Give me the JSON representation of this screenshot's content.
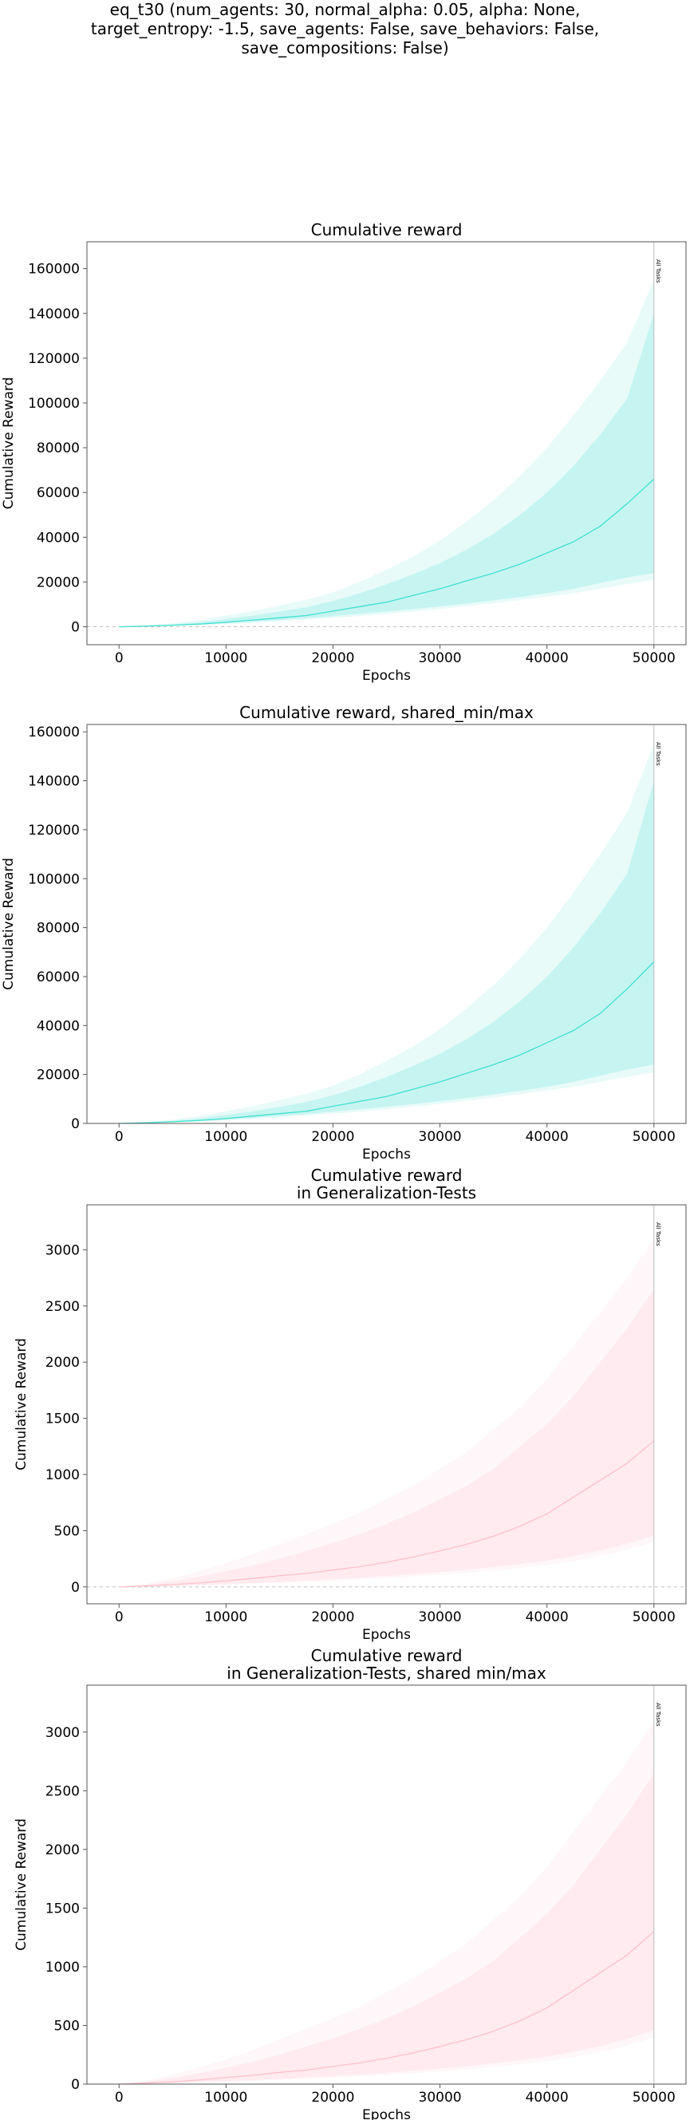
{
  "suptitle_lines": [
    "eq_t30 (num_agents: 30, normal_alpha: 0.05, alpha: None,",
    "target_entropy: -1.5, save_agents: False, save_behaviors: False,",
    "save_compositions: False)"
  ],
  "chart_data": [
    {
      "type": "line",
      "title": [
        "Cumulative reward"
      ],
      "xlabel": "Epochs",
      "ylabel": "Cumulative Reward",
      "xlim": [
        -3000,
        53000
      ],
      "ylim": [
        -8000,
        172000
      ],
      "xticks": [
        0,
        10000,
        20000,
        30000,
        40000,
        50000
      ],
      "yticks": [
        0,
        20000,
        40000,
        60000,
        80000,
        100000,
        120000,
        140000,
        160000
      ],
      "zero_line": true,
      "vline": {
        "x": 50000,
        "label": "All Tasks"
      },
      "color": "#40e0d0",
      "x": [
        0,
        2500,
        5000,
        7500,
        10000,
        12500,
        15000,
        17500,
        20000,
        22500,
        25000,
        27500,
        30000,
        32500,
        35000,
        37500,
        40000,
        42500,
        45000,
        47500,
        50000
      ],
      "series": [
        {
          "role": "mean",
          "values": [
            0,
            300,
            700,
            1200,
            2000,
            3000,
            4000,
            5000,
            7000,
            9000,
            11000,
            14000,
            17000,
            20500,
            24000,
            28000,
            33000,
            38000,
            45000,
            55000,
            66000
          ]
        },
        {
          "role": "outer_lower",
          "values": [
            0,
            200,
            500,
            800,
            1200,
            1800,
            2400,
            3200,
            4000,
            4800,
            5800,
            6800,
            8000,
            9200,
            10500,
            12000,
            13500,
            15000,
            17000,
            19000,
            21000
          ]
        },
        {
          "role": "outer_upper",
          "values": [
            0,
            600,
            1500,
            3000,
            5000,
            7000,
            9500,
            12000,
            15500,
            20000,
            25500,
            31500,
            38500,
            47000,
            56500,
            67500,
            80000,
            94500,
            110000,
            127000,
            155000
          ]
        },
        {
          "role": "inner_lower",
          "values": [
            0,
            250,
            600,
            1000,
            1600,
            2300,
            3000,
            3800,
            4800,
            5800,
            6800,
            7900,
            9100,
            10400,
            11800,
            13300,
            15000,
            17000,
            19500,
            22000,
            24000
          ]
        },
        {
          "role": "inner_upper",
          "values": [
            0,
            450,
            1100,
            2100,
            3500,
            5000,
            6800,
            8800,
            11500,
            15000,
            19000,
            23500,
            28500,
            34500,
            41500,
            50000,
            60000,
            72000,
            86000,
            102000,
            140000
          ]
        }
      ]
    },
    {
      "type": "line",
      "title": [
        "Cumulative reward, shared_min/max"
      ],
      "xlabel": "Epochs",
      "ylabel": "Cumulative Reward",
      "xlim": [
        -3000,
        53000
      ],
      "ylim": [
        0,
        163000
      ],
      "xticks": [
        0,
        10000,
        20000,
        30000,
        40000,
        50000
      ],
      "yticks": [
        0,
        20000,
        40000,
        60000,
        80000,
        100000,
        120000,
        140000,
        160000
      ],
      "zero_line": false,
      "vline": {
        "x": 50000,
        "label": "All Tasks"
      },
      "color": "#40e0d0",
      "x": [
        0,
        2500,
        5000,
        7500,
        10000,
        12500,
        15000,
        17500,
        20000,
        22500,
        25000,
        27500,
        30000,
        32500,
        35000,
        37500,
        40000,
        42500,
        45000,
        47500,
        50000
      ],
      "series": [
        {
          "role": "mean",
          "values": [
            0,
            300,
            700,
            1200,
            2000,
            3000,
            4000,
            5000,
            7000,
            9000,
            11000,
            14000,
            17000,
            20500,
            24000,
            28000,
            33000,
            38000,
            45000,
            55000,
            66000
          ]
        },
        {
          "role": "outer_lower",
          "values": [
            0,
            200,
            500,
            800,
            1200,
            1800,
            2400,
            3200,
            4000,
            4800,
            5800,
            6800,
            8000,
            9200,
            10500,
            12000,
            13500,
            15000,
            17000,
            19000,
            21000
          ]
        },
        {
          "role": "outer_upper",
          "values": [
            0,
            600,
            1500,
            3000,
            5000,
            7000,
            9500,
            12000,
            15500,
            20000,
            25500,
            31500,
            38500,
            47000,
            56500,
            67500,
            80000,
            94500,
            110000,
            127000,
            155000
          ]
        },
        {
          "role": "inner_lower",
          "values": [
            0,
            250,
            600,
            1000,
            1600,
            2300,
            3000,
            3800,
            4800,
            5800,
            6800,
            7900,
            9100,
            10400,
            11800,
            13300,
            15000,
            17000,
            19500,
            22000,
            24000
          ]
        },
        {
          "role": "inner_upper",
          "values": [
            0,
            450,
            1100,
            2100,
            3500,
            5000,
            6800,
            8800,
            11500,
            15000,
            19000,
            23500,
            28500,
            34500,
            41500,
            50000,
            60000,
            72000,
            86000,
            102000,
            140000
          ]
        }
      ]
    },
    {
      "type": "line",
      "title": [
        "Cumulative reward",
        "in Generalization-Tests"
      ],
      "xlabel": "Epochs",
      "ylabel": "Cumulative Reward",
      "xlim": [
        -3000,
        53000
      ],
      "ylim": [
        -150,
        3400
      ],
      "xticks": [
        0,
        10000,
        20000,
        30000,
        40000,
        50000
      ],
      "yticks": [
        0,
        500,
        1000,
        1500,
        2000,
        2500,
        3000
      ],
      "zero_line": true,
      "vline": {
        "x": 50000,
        "label": "All Tasks"
      },
      "color": "#ffc0cb",
      "x": [
        0,
        2500,
        5000,
        7500,
        10000,
        12500,
        15000,
        17500,
        20000,
        22500,
        25000,
        27500,
        30000,
        32500,
        35000,
        37500,
        40000,
        42500,
        45000,
        47500,
        50000
      ],
      "series": [
        {
          "role": "mean",
          "values": [
            0,
            8,
            20,
            35,
            55,
            75,
            100,
            120,
            150,
            180,
            220,
            265,
            320,
            380,
            450,
            540,
            650,
            800,
            950,
            1100,
            1300
          ]
        },
        {
          "role": "outer_lower",
          "values": [
            0,
            3,
            8,
            14,
            20,
            28,
            36,
            45,
            55,
            65,
            78,
            92,
            108,
            125,
            145,
            168,
            195,
            230,
            275,
            330,
            400
          ]
        },
        {
          "role": "outer_upper",
          "values": [
            0,
            30,
            80,
            140,
            210,
            290,
            380,
            470,
            560,
            660,
            780,
            900,
            1050,
            1200,
            1400,
            1600,
            1850,
            2150,
            2450,
            2750,
            3100
          ]
        },
        {
          "role": "inner_lower",
          "values": [
            0,
            4,
            10,
            17,
            25,
            34,
            44,
            55,
            67,
            80,
            96,
            113,
            132,
            153,
            177,
            204,
            235,
            275,
            325,
            385,
            460
          ]
        },
        {
          "role": "inner_upper",
          "values": [
            0,
            20,
            50,
            90,
            140,
            190,
            250,
            320,
            390,
            470,
            560,
            660,
            780,
            900,
            1050,
            1250,
            1450,
            1700,
            2000,
            2300,
            2650
          ]
        }
      ]
    },
    {
      "type": "line",
      "title": [
        "Cumulative reward",
        "in Generalization-Tests, shared min/max"
      ],
      "xlabel": "Epochs",
      "ylabel": "Cumulative Reward",
      "xlim": [
        -3000,
        53000
      ],
      "ylim": [
        0,
        3400
      ],
      "xticks": [
        0,
        10000,
        20000,
        30000,
        40000,
        50000
      ],
      "yticks": [
        0,
        500,
        1000,
        1500,
        2000,
        2500,
        3000
      ],
      "zero_line": false,
      "vline": {
        "x": 50000,
        "label": "All Tasks"
      },
      "color": "#ffc0cb",
      "x": [
        0,
        2500,
        5000,
        7500,
        10000,
        12500,
        15000,
        17500,
        20000,
        22500,
        25000,
        27500,
        30000,
        32500,
        35000,
        37500,
        40000,
        42500,
        45000,
        47500,
        50000
      ],
      "series": [
        {
          "role": "mean",
          "values": [
            0,
            8,
            20,
            35,
            55,
            75,
            100,
            120,
            150,
            180,
            220,
            265,
            320,
            380,
            450,
            540,
            650,
            800,
            950,
            1100,
            1300
          ]
        },
        {
          "role": "outer_lower",
          "values": [
            0,
            3,
            8,
            14,
            20,
            28,
            36,
            45,
            55,
            65,
            78,
            92,
            108,
            125,
            145,
            168,
            195,
            230,
            275,
            330,
            400
          ]
        },
        {
          "role": "outer_upper",
          "values": [
            0,
            30,
            80,
            140,
            210,
            290,
            380,
            470,
            560,
            660,
            780,
            900,
            1050,
            1200,
            1400,
            1600,
            1850,
            2150,
            2450,
            2750,
            3100
          ]
        },
        {
          "role": "inner_lower",
          "values": [
            0,
            4,
            10,
            17,
            25,
            34,
            44,
            55,
            67,
            80,
            96,
            113,
            132,
            153,
            177,
            204,
            235,
            275,
            325,
            385,
            460
          ]
        },
        {
          "role": "inner_upper",
          "values": [
            0,
            20,
            50,
            90,
            140,
            190,
            250,
            320,
            390,
            470,
            560,
            660,
            780,
            900,
            1050,
            1250,
            1450,
            1700,
            2000,
            2300,
            2650
          ]
        }
      ]
    }
  ]
}
